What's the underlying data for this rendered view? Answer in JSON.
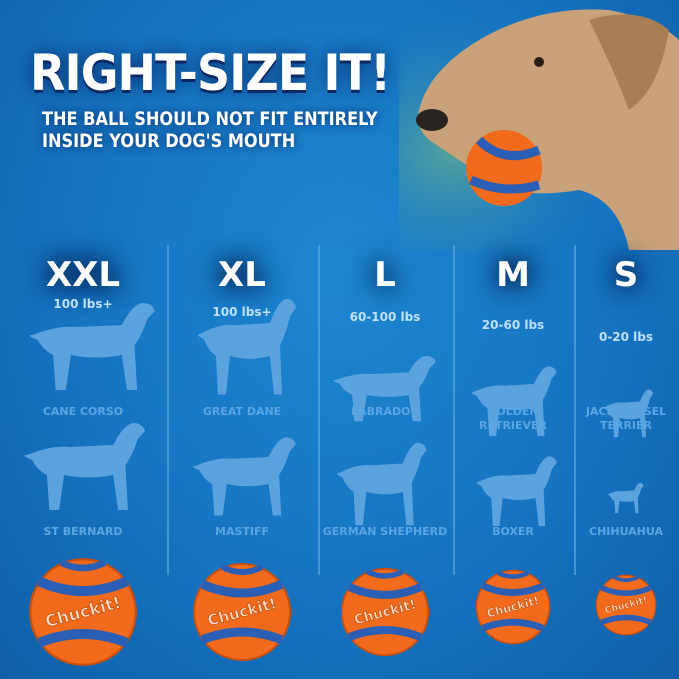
{
  "headline": "RIGHT-SIZE IT!",
  "subheadline": [
    "THE BALL SHOULD NOT FIT ENTIRELY",
    "INSIDE YOUR DOG'S MOUTH"
  ],
  "brand": "Chuckit!",
  "colors": {
    "background": "#1572bf",
    "ball_orange": "#f26a1b",
    "ball_blue": "#2a5fb5",
    "silhouette": "#5ba3df"
  },
  "sizes": [
    {
      "size": "XXL",
      "weight": "100 lbs+",
      "breeds": [
        "CANE CORSO",
        "ST BERNARD"
      ]
    },
    {
      "size": "XL",
      "weight": "100 lbs+",
      "breeds": [
        "GREAT DANE",
        "MASTIFF"
      ]
    },
    {
      "size": "L",
      "weight": "60-100 lbs",
      "breeds": [
        "LABRADOR",
        "GERMAN SHEPHERD"
      ]
    },
    {
      "size": "M",
      "weight": "20-60 lbs",
      "breeds": [
        "GOLDEN RETRIEVER",
        "BOXER"
      ]
    },
    {
      "size": "S",
      "weight": "0-20 lbs",
      "breeds": [
        "JACK RUSSEL TERRIER",
        "CHIHUAHUA"
      ]
    }
  ]
}
